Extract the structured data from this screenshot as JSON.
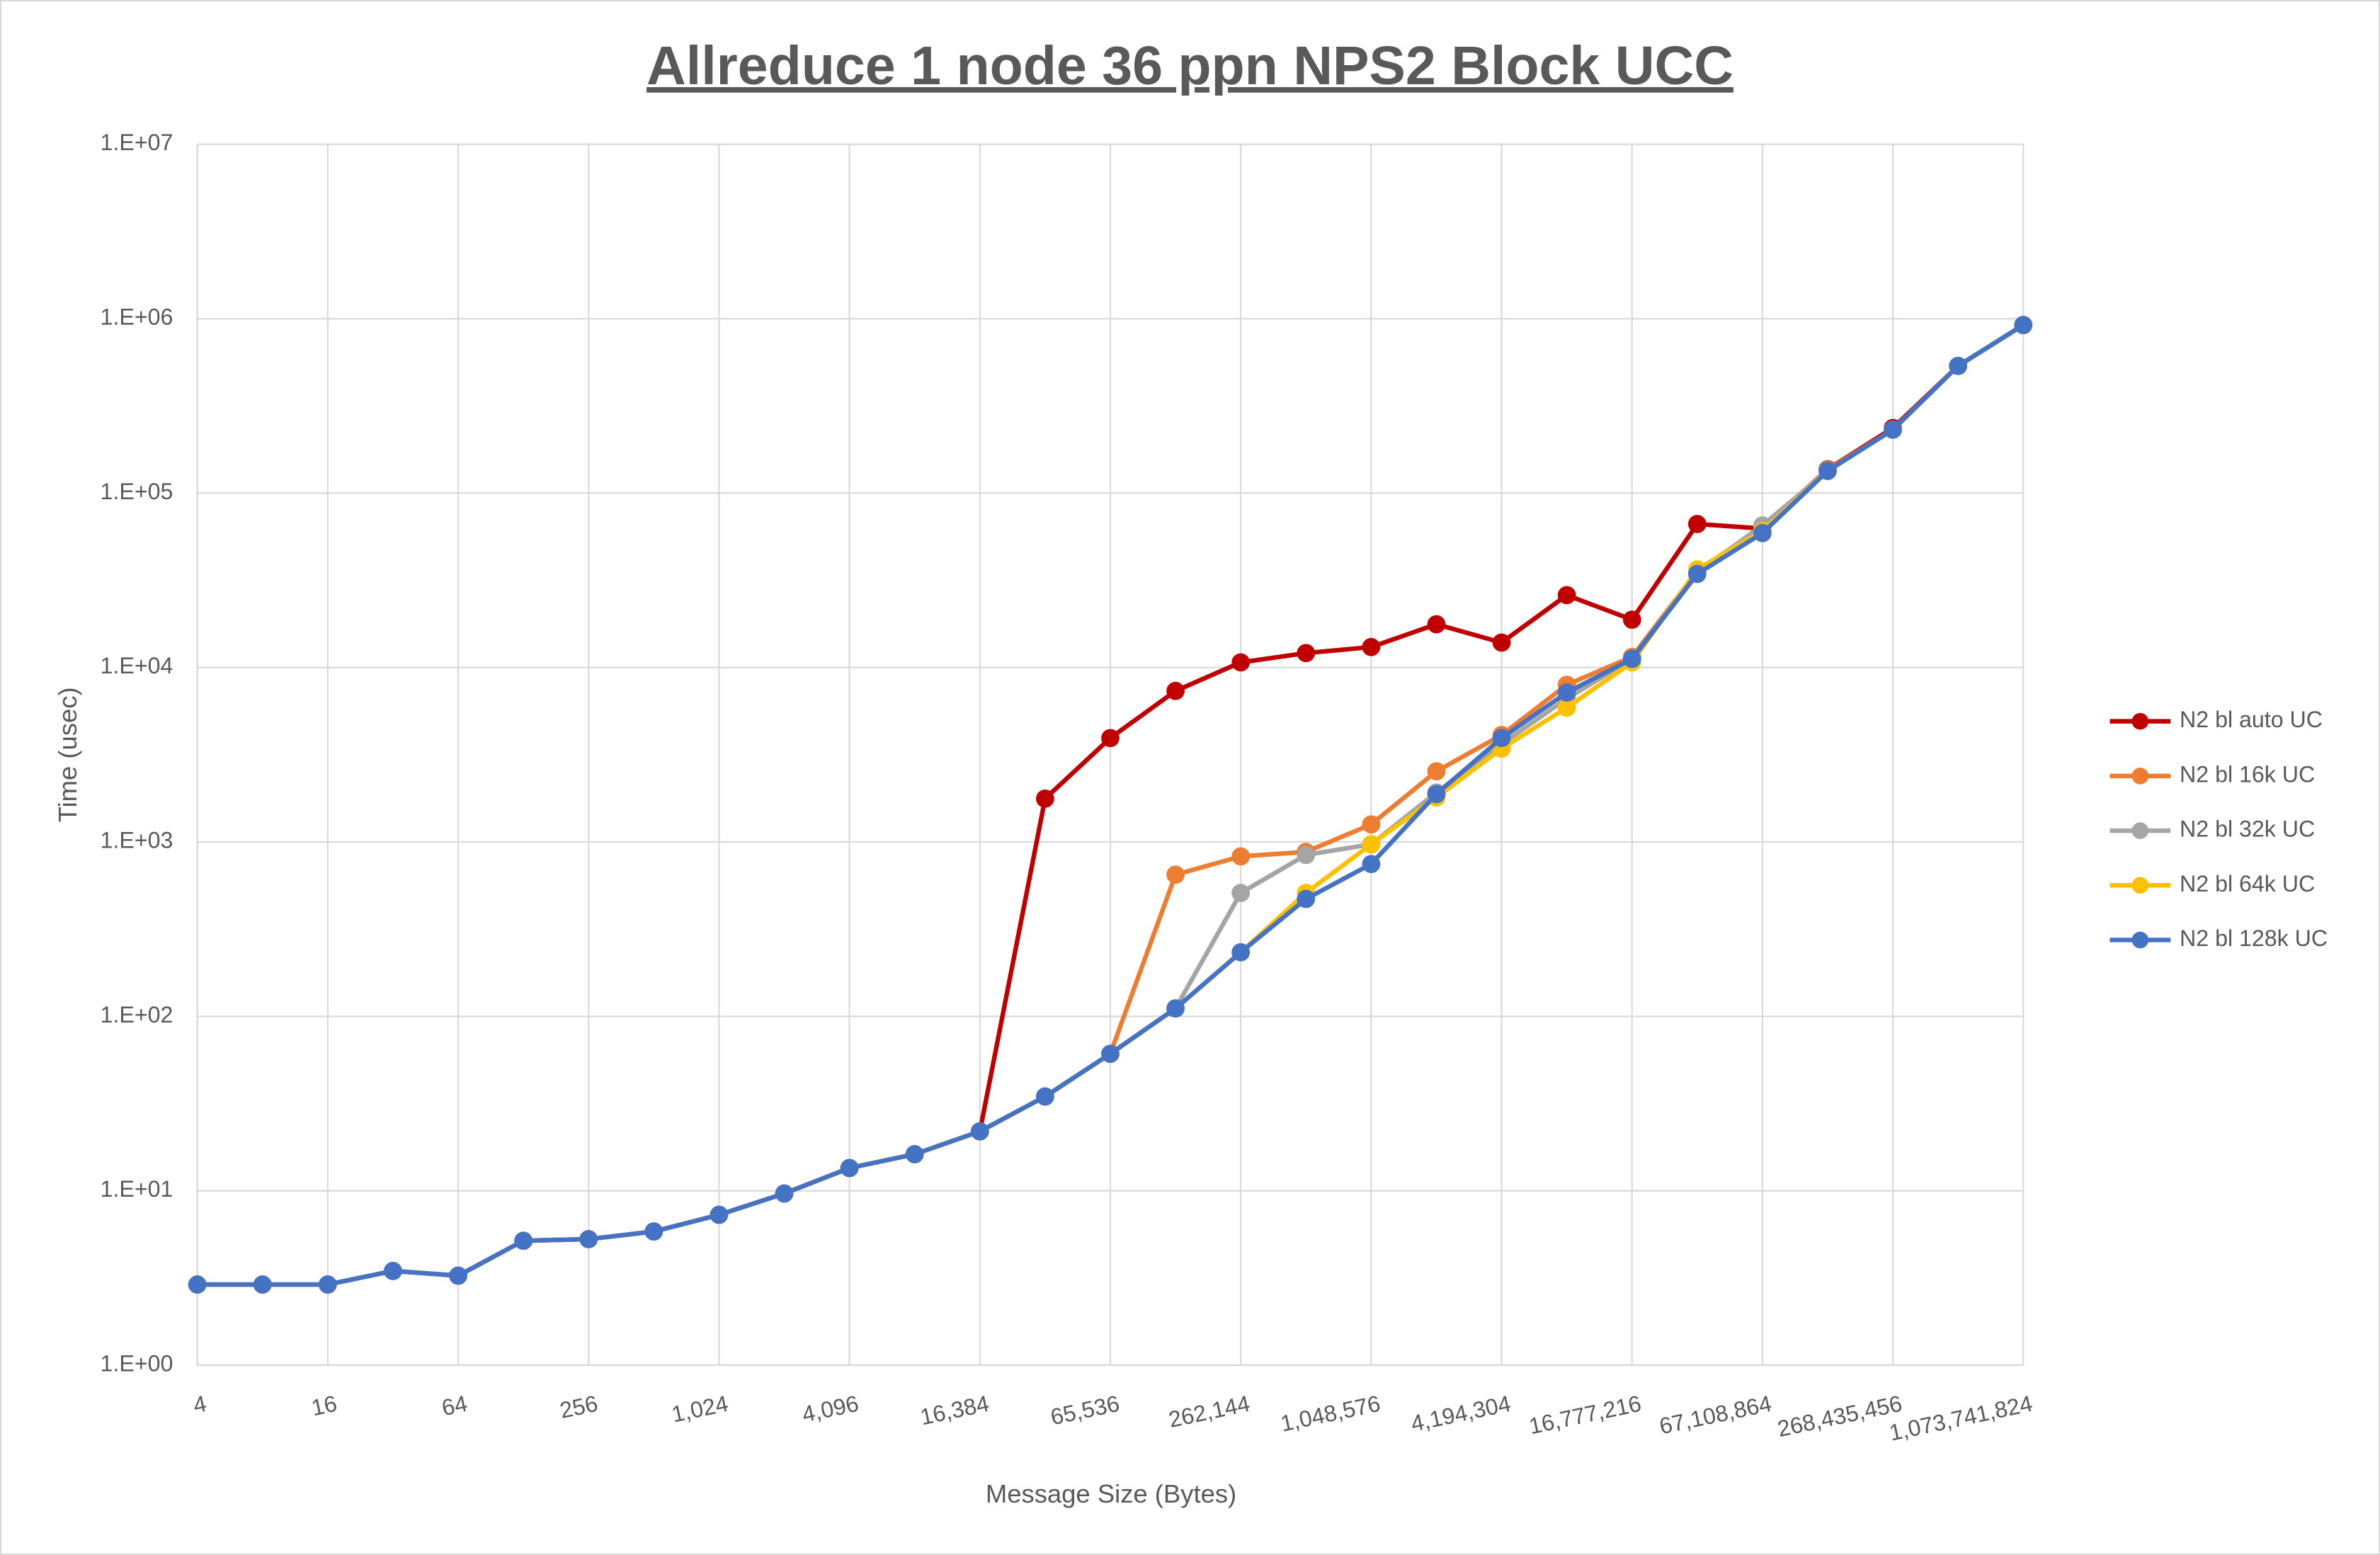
{
  "chart_data": {
    "type": "line",
    "title": "Allreduce 1 node 36 ppn NPS2 Block UCC",
    "x_label": "Message Size (Bytes)",
    "y_label": "Time (usec)",
    "categories": [
      "4",
      null,
      "16",
      null,
      "64",
      null,
      "256",
      null,
      "1,024",
      null,
      "4,096",
      null,
      "16,384",
      null,
      "65,536",
      null,
      "262,144",
      null,
      "1,048,576",
      null,
      "4,194,304",
      null,
      "16,777,216",
      null,
      "67,108,864",
      null,
      "268,435,456",
      null,
      "1,073,741,824"
    ],
    "y_scale": "log",
    "ylim": [
      1,
      10000000
    ],
    "yticks": [
      {
        "value": 1,
        "label": "1.E+00"
      },
      {
        "value": 10,
        "label": "1.E+01"
      },
      {
        "value": 100,
        "label": "1.E+02"
      },
      {
        "value": 1000,
        "label": "1.E+03"
      },
      {
        "value": 10000,
        "label": "1.E+04"
      },
      {
        "value": 100000,
        "label": "1.E+05"
      },
      {
        "value": 1000000,
        "label": "1.E+06"
      },
      {
        "value": 10000000,
        "label": "1.E+07"
      }
    ],
    "grid": true,
    "legend_position": "right",
    "series": [
      {
        "name": "N2 bl auto UC",
        "color": "#C00000",
        "values": [
          2.9,
          2.9,
          2.9,
          3.47,
          3.26,
          5.17,
          5.28,
          5.84,
          7.28,
          9.64,
          13.5,
          16.2,
          21.9,
          1770,
          3940,
          7340,
          10700,
          12100,
          13100,
          17700,
          13900,
          26000,
          18800,
          66500,
          62600,
          137000,
          236000,
          536000,
          920000
        ]
      },
      {
        "name": "N2 bl 16k UC",
        "color": "#ED7D31",
        "values": [
          2.9,
          2.9,
          2.9,
          3.47,
          3.26,
          5.17,
          5.28,
          5.84,
          7.28,
          9.64,
          13.5,
          16.2,
          21.9,
          34.7,
          61,
          649,
          826,
          877,
          1260,
          2540,
          4100,
          7960,
          11500,
          35700,
          64000,
          136000,
          231000,
          536000,
          920000
        ]
      },
      {
        "name": "N2 bl 32k UC",
        "color": "#A5A5A5",
        "values": [
          2.9,
          2.9,
          2.9,
          3.47,
          3.26,
          5.17,
          5.28,
          5.84,
          7.28,
          9.64,
          13.5,
          16.2,
          21.9,
          34.7,
          61,
          111,
          510,
          842,
          969,
          1920,
          3640,
          6640,
          11200,
          35000,
          65300,
          134000,
          231000,
          536000,
          920000
        ]
      },
      {
        "name": "N2 bl 64k UC",
        "color": "#FFC000",
        "values": [
          2.9,
          2.9,
          2.9,
          3.47,
          3.26,
          5.17,
          5.28,
          5.84,
          7.28,
          9.64,
          13.5,
          16.2,
          21.9,
          34.7,
          61,
          111,
          233,
          510,
          969,
          1800,
          3430,
          5890,
          10700,
          36500,
          60700,
          134000,
          231000,
          536000,
          920000
        ]
      },
      {
        "name": "N2 bl 128k UC",
        "color": "#4472C4",
        "values": [
          2.9,
          2.9,
          2.9,
          3.47,
          3.26,
          5.17,
          5.28,
          5.84,
          7.28,
          9.64,
          13.5,
          16.2,
          21.9,
          34.7,
          61,
          111,
          233,
          471,
          747,
          1880,
          3940,
          7190,
          11200,
          34400,
          59000,
          134000,
          231000,
          536000,
          920000
        ]
      }
    ]
  }
}
